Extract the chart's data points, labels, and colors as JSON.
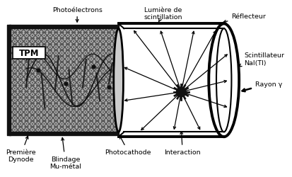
{
  "bg_color": "#ffffff",
  "lc": "#000000",
  "figsize": [
    4.13,
    2.51
  ],
  "dpi": 100,
  "labels": {
    "photoelectrons": "Photoélectrons",
    "lumiere": "Lumière de\nscintillation",
    "reflecteur": "Réflecteur",
    "scintillateur": "Scintillateur\nNaI(Tl)",
    "rayon": "Rayon γ",
    "tpm": "TPM",
    "premiere_dynode": "Première\nDynode",
    "blindage": "Blindage\nMu-métal",
    "photocathode": "Photocathode",
    "interaction": "Interaction"
  }
}
